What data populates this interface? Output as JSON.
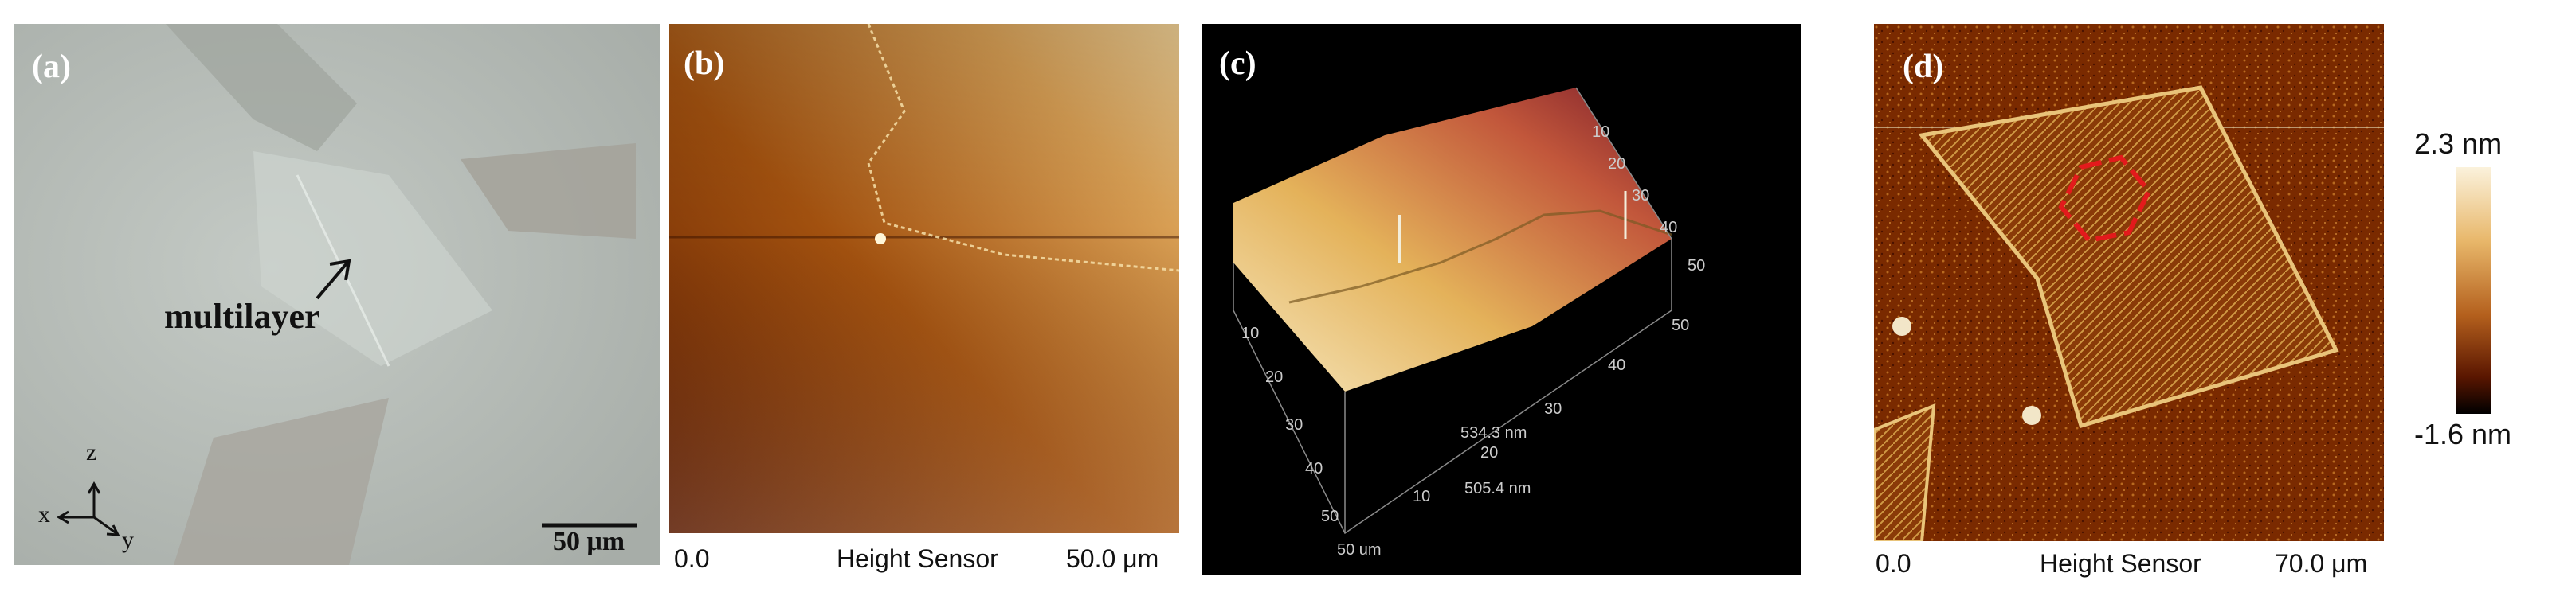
{
  "figure": {
    "panel_a": {
      "label": "(a)",
      "annotation": "multilayer",
      "axes": {
        "x": "x",
        "y": "y",
        "z": "z"
      },
      "scale_bar": "50 μm"
    },
    "panel_b": {
      "label": "(b)",
      "axis_start": "0.0",
      "axis_title": "Height Sensor",
      "axis_end": "50.0 μm"
    },
    "panel_c": {
      "label": "(c)",
      "front_ticks": [
        "10",
        "20",
        "30",
        "40",
        "50"
      ],
      "right_ticks": [
        "10",
        "20",
        "30",
        "40",
        "50"
      ],
      "back_ticks": [
        "10",
        "20",
        "30",
        "40",
        "50"
      ],
      "z_label_top": "534.3 nm",
      "z_label_bottom": "505.4 nm",
      "corner_label": "50 um"
    },
    "panel_d": {
      "label": "(d)",
      "axis_start": "0.0",
      "axis_title": "Height Sensor",
      "axis_end": "70.0 μm"
    },
    "colorbar": {
      "max_label": "2.3 nm",
      "min_label": "-1.6 nm"
    },
    "colors": {
      "optical_bg": "#b7bdb8",
      "afm_dark": "#4a1500",
      "afm_mid": "#b8621a",
      "afm_light": "#f2d8a0",
      "hexagon": "#e31a1c"
    }
  }
}
